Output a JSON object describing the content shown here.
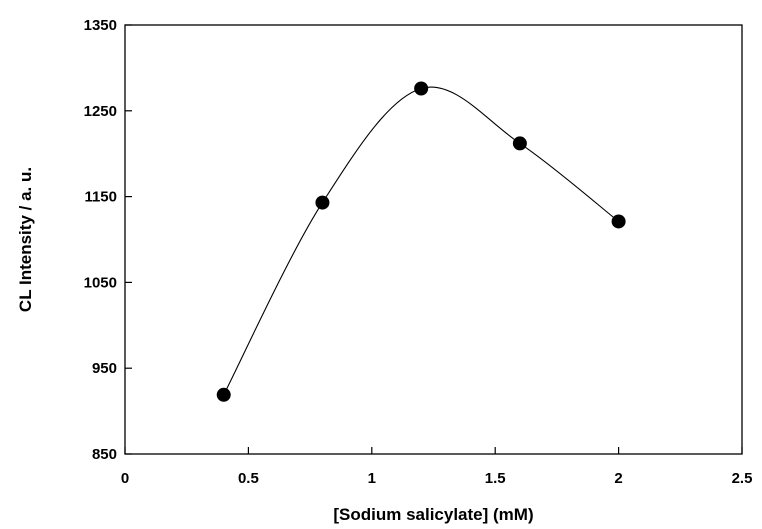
{
  "chart_data": {
    "type": "scatter",
    "title": "",
    "xlabel": "[Sodium salicylate] (mM)",
    "ylabel": "CL Intensity / a. u.",
    "xlim": [
      0,
      2.5
    ],
    "ylim": [
      850,
      1350
    ],
    "xticks": [
      0,
      0.5,
      1,
      1.5,
      2,
      2.5
    ],
    "xtick_labels": [
      "0",
      "0.5",
      "1",
      "1.5",
      "2",
      "2.5"
    ],
    "yticks": [
      850,
      950,
      1050,
      1150,
      1250,
      1350
    ],
    "ytick_labels": [
      "850",
      "950",
      "1050",
      "1150",
      "1250",
      "1350"
    ],
    "grid": false,
    "legend": "none",
    "series": [
      {
        "x": [
          0.4,
          0.8,
          1.2,
          1.6,
          2.0
        ],
        "y": [
          919,
          1143,
          1276,
          1212,
          1121
        ],
        "marker": "filled-circle",
        "line": "smooth",
        "color": "#000000"
      }
    ]
  }
}
